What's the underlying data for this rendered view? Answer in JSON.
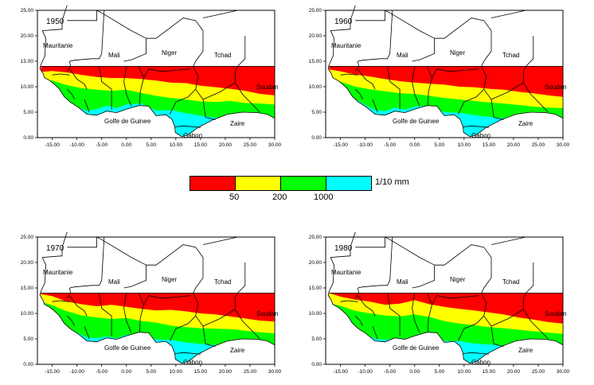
{
  "panels": [
    {
      "year": "1950"
    },
    {
      "year": "1960"
    },
    {
      "year": "1970"
    },
    {
      "year": "1980"
    }
  ],
  "axes": {
    "x_ticks": [
      "-15.00",
      "-10.00",
      "-5.00",
      "0.00",
      "5.00",
      "10.00",
      "15.00",
      "20.00",
      "25.00",
      "30.00"
    ],
    "y_ticks": [
      "25.00",
      "20.00",
      "15.00",
      "10.00",
      "5.00",
      "0.00"
    ],
    "x_range": [
      -18,
      30
    ],
    "y_range": [
      0,
      25
    ]
  },
  "map_labels": {
    "mauritanie": "Mauritanie",
    "mali": "Mali",
    "niger": "Niger",
    "tchad": "Tchad",
    "soudan": "Soudan",
    "golfe": "Golfe de Guinee",
    "zaire": "Zaire",
    "gabon": "Gabon"
  },
  "legend": {
    "colors": [
      "#ff0000",
      "#ffff00",
      "#00ff00",
      "#00ffff"
    ],
    "thresholds": [
      "50",
      "200",
      "1000"
    ],
    "unit": "1/10 mm"
  }
}
